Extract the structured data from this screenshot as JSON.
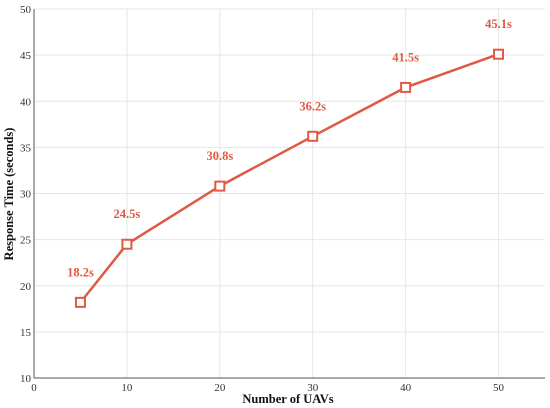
{
  "chart_data": {
    "type": "line",
    "title": "",
    "xlabel": "Number of UAVs",
    "ylabel": "Response Time (seconds)",
    "xlim": [
      0,
      55
    ],
    "ylim": [
      10,
      50
    ],
    "xticks": [
      0,
      10,
      20,
      30,
      40,
      50
    ],
    "yticks": [
      10,
      15,
      20,
      25,
      30,
      35,
      40,
      45,
      50
    ],
    "grid": true,
    "color": "#e05a42",
    "marker": "square",
    "series": [
      {
        "x": [
          5,
          10,
          20,
          30,
          40,
          50
        ],
        "values": [
          18.2,
          24.5,
          30.8,
          36.2,
          41.5,
          45.1
        ],
        "labels": [
          "18.2s",
          "24.5s",
          "30.8s",
          "36.2s",
          "41.5s",
          "45.1s"
        ]
      }
    ]
  }
}
